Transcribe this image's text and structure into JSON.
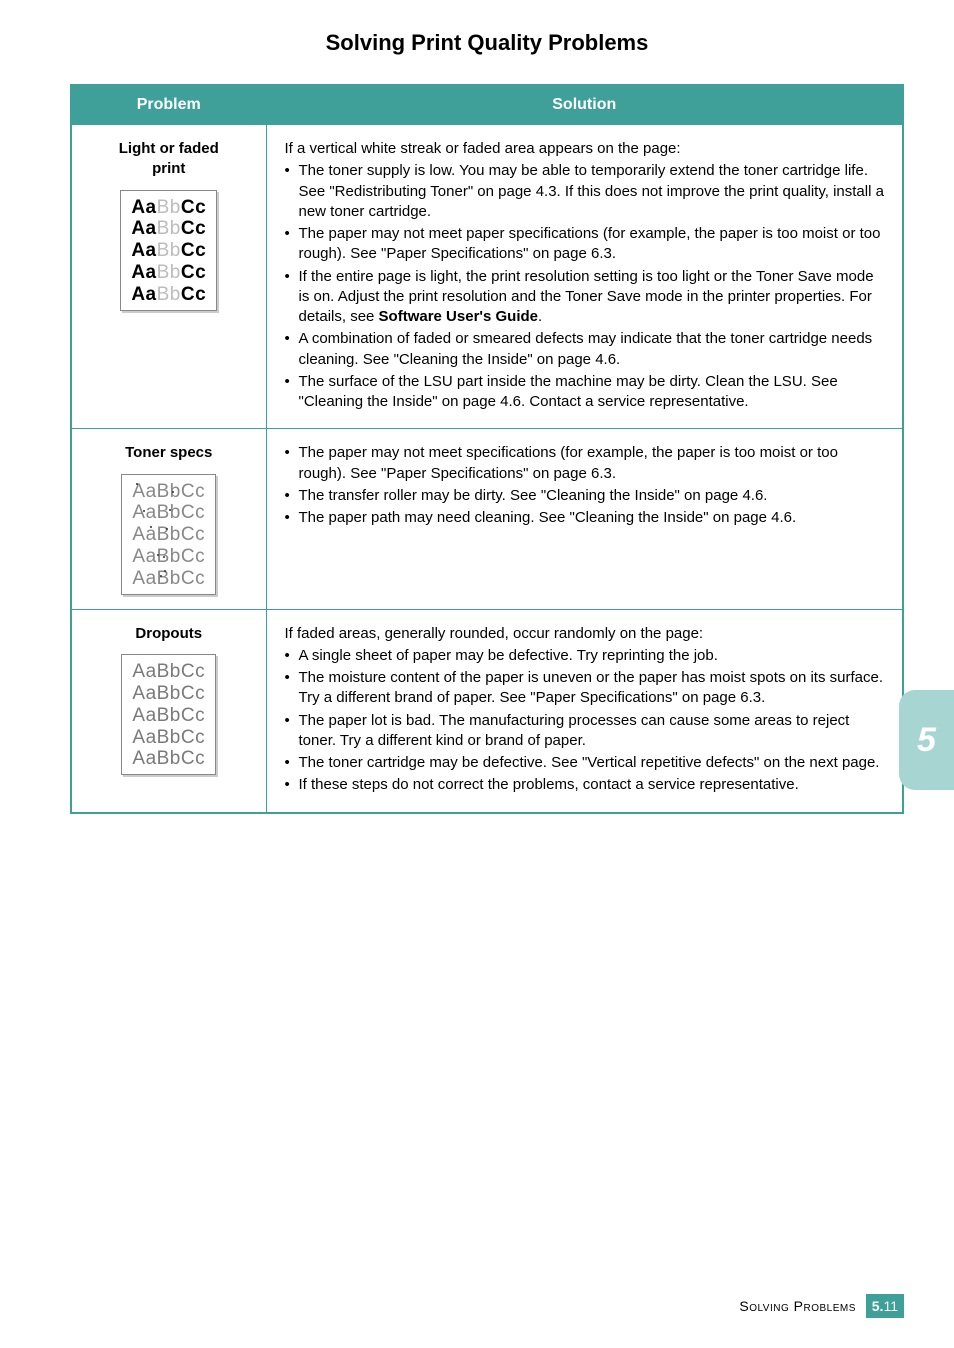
{
  "colors": {
    "teal": "#3f9f99",
    "teal_header_text": "#ffffff",
    "teal_border": "#3f9f99",
    "side_tab_bg": "#a7d6d2",
    "side_tab_text": "#ffffff",
    "footer_chip_bg": "#3f9f99"
  },
  "title": "Solving Print Quality Problems",
  "headers": {
    "problem": "Problem",
    "solution": "Solution"
  },
  "rows": [
    {
      "label": "Light or faded print",
      "sample_variant": "faded",
      "intro": "If a vertical white streak or faded area appears on the page:",
      "bullets": [
        "The toner supply is low. You may be able to temporarily extend the toner cartridge life. See \"Redistributing Toner\" on page 4.3. If this does not improve the print quality, install a new toner cartridge.",
        "The paper may not meet paper specifications (for example, the paper is too moist or too rough). See \"Paper Specifications\" on page 6.3.",
        "If the entire page is light, the print resolution setting is too light or the Toner Save mode is on. Adjust the print resolution and the Toner Save mode in the printer properties. For details, see <b>Software User's Guide</b>.",
        "A combination of faded or smeared defects may indicate that the toner cartridge needs cleaning. See \"Cleaning the Inside\" on page 4.6.",
        "The surface of the LSU part inside the machine may be dirty. Clean the LSU. See \"Cleaning the Inside\" on page 4.6. Contact a service representative."
      ]
    },
    {
      "label": "Toner specs",
      "sample_variant": "specs",
      "intro": "",
      "bullets": [
        "The paper may not meet specifications (for example, the paper is too moist or too rough). See \"Paper Specifications\" on page 6.3.",
        "The transfer roller may be dirty. See \"Cleaning the Inside\" on page 4.6.",
        "The paper path may need cleaning. See \"Cleaning the Inside\" on page 4.6."
      ]
    },
    {
      "label": "Dropouts",
      "sample_variant": "dropouts",
      "intro": "If faded areas, generally rounded, occur randomly on the page:",
      "bullets": [
        "A single sheet of paper may be defective. Try reprinting the job.",
        "The moisture content of the paper is uneven or the paper has moist spots on its surface. Try a different brand of paper. See \"Paper Specifications\" on page 6.3.",
        "The paper lot is bad. The manufacturing processes can cause some areas to reject toner. Try a different kind or brand of paper.",
        "The toner cartridge may be defective. See \"Vertical repetitive defects\" on the next page.",
        "If these steps do not correct the problems, contact a service representative."
      ]
    }
  ],
  "side_tab": "5",
  "footer": {
    "label": "Solving Problems",
    "chapter": "5.",
    "page": "11"
  }
}
